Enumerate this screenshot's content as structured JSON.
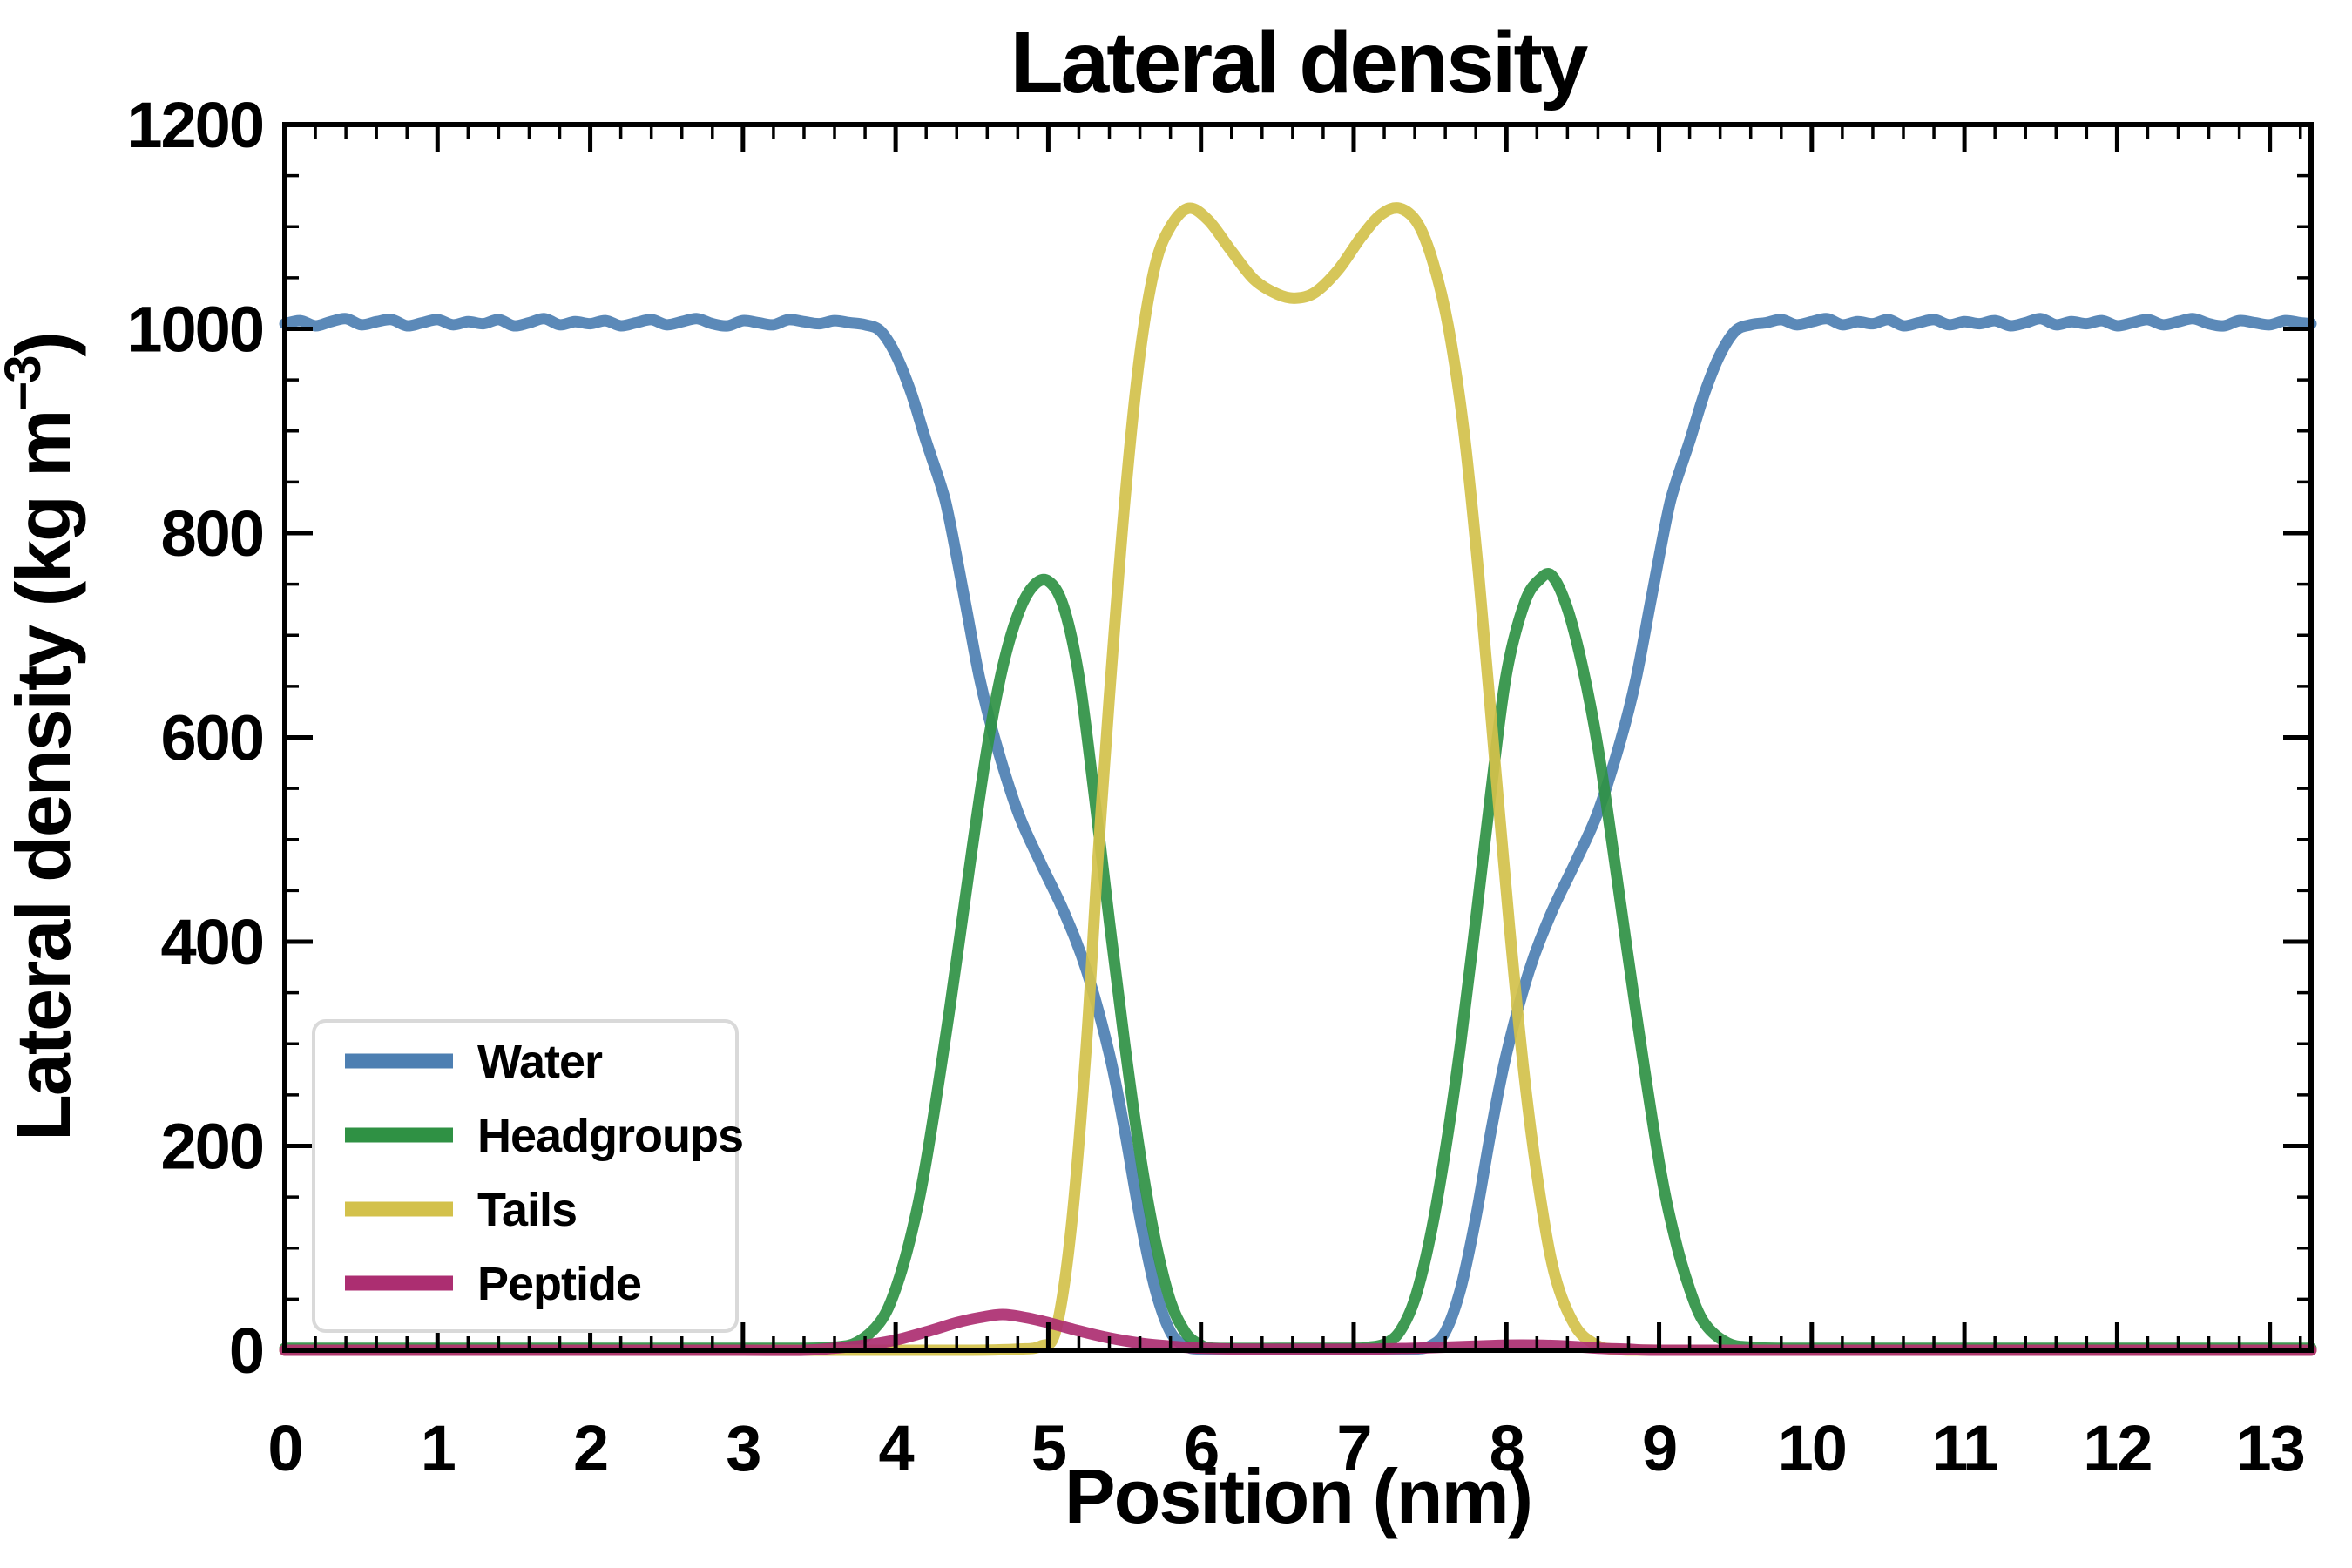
{
  "title": "Lateral density",
  "chart_data": {
    "type": "line",
    "title": "Lateral density",
    "xlabel": "Position (nm)",
    "ylabel": "Lateral density (kg m⁻³)",
    "ylabel_parts": {
      "prefix": "Lateral density (kg m",
      "sup": "−3",
      "suffix": ")"
    },
    "xlim": [
      0,
      13.27
    ],
    "ylim": [
      0,
      1200
    ],
    "x_major_tick": 1,
    "x_minor_tick": 0.2,
    "y_major_tick": 200,
    "y_minor_tick": 50,
    "grid": false,
    "legend_position": "lower left",
    "x_tick_labels": [
      "0",
      "1",
      "2",
      "3",
      "4",
      "5",
      "6",
      "7",
      "8",
      "9",
      "10",
      "11",
      "12",
      "13"
    ],
    "y_tick_labels": [
      "0",
      "200",
      "400",
      "600",
      "800",
      "1000",
      "1200"
    ],
    "series": [
      {
        "name": "Water",
        "color": "#4d7fb2",
        "points": [
          [
            0.0,
            1005
          ],
          [
            0.1,
            1008
          ],
          [
            0.2,
            1003
          ],
          [
            0.3,
            1007
          ],
          [
            0.4,
            1010
          ],
          [
            0.5,
            1004
          ],
          [
            0.6,
            1007
          ],
          [
            0.7,
            1009
          ],
          [
            0.8,
            1003
          ],
          [
            0.9,
            1006
          ],
          [
            1.0,
            1009
          ],
          [
            1.1,
            1004
          ],
          [
            1.2,
            1007
          ],
          [
            1.3,
            1005
          ],
          [
            1.4,
            1009
          ],
          [
            1.5,
            1003
          ],
          [
            1.6,
            1006
          ],
          [
            1.7,
            1010
          ],
          [
            1.8,
            1004
          ],
          [
            1.9,
            1007
          ],
          [
            2.0,
            1005
          ],
          [
            2.1,
            1008
          ],
          [
            2.2,
            1003
          ],
          [
            2.3,
            1006
          ],
          [
            2.4,
            1009
          ],
          [
            2.5,
            1004
          ],
          [
            2.6,
            1007
          ],
          [
            2.7,
            1010
          ],
          [
            2.8,
            1005
          ],
          [
            2.9,
            1003
          ],
          [
            3.0,
            1008
          ],
          [
            3.1,
            1006
          ],
          [
            3.2,
            1004
          ],
          [
            3.3,
            1009
          ],
          [
            3.4,
            1007
          ],
          [
            3.5,
            1005
          ],
          [
            3.6,
            1008
          ],
          [
            3.7,
            1006
          ],
          [
            3.8,
            1004
          ],
          [
            3.9,
            998
          ],
          [
            4.0,
            975
          ],
          [
            4.1,
            938
          ],
          [
            4.2,
            890
          ],
          [
            4.3,
            845
          ],
          [
            4.35,
            815
          ],
          [
            4.45,
            737
          ],
          [
            4.55,
            658
          ],
          [
            4.65,
            598
          ],
          [
            4.8,
            527
          ],
          [
            4.95,
            477
          ],
          [
            5.1,
            430
          ],
          [
            5.25,
            372
          ],
          [
            5.4,
            290
          ],
          [
            5.5,
            215
          ],
          [
            5.6,
            130
          ],
          [
            5.7,
            60
          ],
          [
            5.8,
            18
          ],
          [
            5.9,
            4
          ],
          [
            6.0,
            1
          ],
          [
            6.25,
            1
          ],
          [
            6.5,
            1
          ],
          [
            6.75,
            1
          ],
          [
            7.0,
            1
          ],
          [
            7.25,
            1
          ],
          [
            7.4,
            1
          ],
          [
            7.5,
            4
          ],
          [
            7.6,
            18
          ],
          [
            7.7,
            60
          ],
          [
            7.8,
            130
          ],
          [
            7.9,
            215
          ],
          [
            8.0,
            290
          ],
          [
            8.15,
            372
          ],
          [
            8.3,
            430
          ],
          [
            8.45,
            477
          ],
          [
            8.6,
            527
          ],
          [
            8.75,
            598
          ],
          [
            8.85,
            658
          ],
          [
            8.95,
            737
          ],
          [
            9.05,
            815
          ],
          [
            9.1,
            845
          ],
          [
            9.2,
            890
          ],
          [
            9.3,
            938
          ],
          [
            9.4,
            975
          ],
          [
            9.5,
            998
          ],
          [
            9.6,
            1004
          ],
          [
            9.7,
            1006
          ],
          [
            9.8,
            1009
          ],
          [
            9.9,
            1004
          ],
          [
            10.0,
            1007
          ],
          [
            10.1,
            1010
          ],
          [
            10.2,
            1004
          ],
          [
            10.3,
            1007
          ],
          [
            10.4,
            1005
          ],
          [
            10.5,
            1009
          ],
          [
            10.6,
            1003
          ],
          [
            10.7,
            1006
          ],
          [
            10.8,
            1009
          ],
          [
            10.9,
            1004
          ],
          [
            11.0,
            1007
          ],
          [
            11.1,
            1005
          ],
          [
            11.2,
            1008
          ],
          [
            11.3,
            1003
          ],
          [
            11.4,
            1006
          ],
          [
            11.5,
            1010
          ],
          [
            11.6,
            1004
          ],
          [
            11.7,
            1007
          ],
          [
            11.8,
            1005
          ],
          [
            11.9,
            1008
          ],
          [
            12.0,
            1003
          ],
          [
            12.1,
            1006
          ],
          [
            12.2,
            1009
          ],
          [
            12.3,
            1004
          ],
          [
            12.4,
            1007
          ],
          [
            12.5,
            1010
          ],
          [
            12.6,
            1005
          ],
          [
            12.7,
            1003
          ],
          [
            12.8,
            1008
          ],
          [
            12.9,
            1006
          ],
          [
            13.0,
            1004
          ],
          [
            13.1,
            1008
          ],
          [
            13.2,
            1006
          ],
          [
            13.27,
            1005
          ]
        ]
      },
      {
        "name": "Headgroups",
        "color": "#2f9144",
        "points": [
          [
            0.0,
            2
          ],
          [
            0.5,
            2
          ],
          [
            1.0,
            2
          ],
          [
            1.5,
            2
          ],
          [
            2.0,
            2
          ],
          [
            2.5,
            2
          ],
          [
            3.0,
            2
          ],
          [
            3.4,
            2
          ],
          [
            3.6,
            3
          ],
          [
            3.75,
            8
          ],
          [
            3.9,
            28
          ],
          [
            4.0,
            60
          ],
          [
            4.1,
            112
          ],
          [
            4.2,
            185
          ],
          [
            4.35,
            330
          ],
          [
            4.5,
            490
          ],
          [
            4.6,
            590
          ],
          [
            4.7,
            668
          ],
          [
            4.8,
            720
          ],
          [
            4.9,
            748
          ],
          [
            5.0,
            753
          ],
          [
            5.1,
            728
          ],
          [
            5.2,
            660
          ],
          [
            5.3,
            545
          ],
          [
            5.4,
            420
          ],
          [
            5.5,
            300
          ],
          [
            5.6,
            193
          ],
          [
            5.7,
            108
          ],
          [
            5.8,
            48
          ],
          [
            5.9,
            17
          ],
          [
            6.0,
            5
          ],
          [
            6.1,
            2
          ],
          [
            6.5,
            2
          ],
          [
            7.0,
            2
          ],
          [
            7.1,
            3
          ],
          [
            7.2,
            6
          ],
          [
            7.3,
            18
          ],
          [
            7.4,
            50
          ],
          [
            7.5,
            110
          ],
          [
            7.6,
            195
          ],
          [
            7.7,
            300
          ],
          [
            7.8,
            422
          ],
          [
            7.9,
            548
          ],
          [
            8.0,
            662
          ],
          [
            8.12,
            732
          ],
          [
            8.22,
            755
          ],
          [
            8.3,
            758
          ],
          [
            8.4,
            726
          ],
          [
            8.5,
            668
          ],
          [
            8.6,
            590
          ],
          [
            8.7,
            488
          ],
          [
            8.85,
            330
          ],
          [
            9.0,
            185
          ],
          [
            9.1,
            112
          ],
          [
            9.2,
            60
          ],
          [
            9.3,
            26
          ],
          [
            9.45,
            7
          ],
          [
            9.6,
            3
          ],
          [
            9.8,
            2
          ],
          [
            10.5,
            2
          ],
          [
            11.5,
            2
          ],
          [
            12.5,
            2
          ],
          [
            13.27,
            2
          ]
        ]
      },
      {
        "name": "Tails",
        "color": "#d3c14b",
        "points": [
          [
            0.0,
            0
          ],
          [
            1.0,
            0
          ],
          [
            2.0,
            0
          ],
          [
            3.0,
            0
          ],
          [
            4.0,
            0
          ],
          [
            4.5,
            0
          ],
          [
            4.8,
            1
          ],
          [
            4.95,
            4
          ],
          [
            5.05,
            20
          ],
          [
            5.15,
            120
          ],
          [
            5.25,
            300
          ],
          [
            5.32,
            470
          ],
          [
            5.4,
            640
          ],
          [
            5.5,
            830
          ],
          [
            5.6,
            975
          ],
          [
            5.7,
            1062
          ],
          [
            5.8,
            1100
          ],
          [
            5.92,
            1118
          ],
          [
            6.05,
            1106
          ],
          [
            6.2,
            1076
          ],
          [
            6.35,
            1048
          ],
          [
            6.5,
            1034
          ],
          [
            6.62,
            1030
          ],
          [
            6.75,
            1036
          ],
          [
            6.9,
            1058
          ],
          [
            7.05,
            1090
          ],
          [
            7.18,
            1112
          ],
          [
            7.3,
            1118
          ],
          [
            7.42,
            1103
          ],
          [
            7.52,
            1065
          ],
          [
            7.62,
            1002
          ],
          [
            7.72,
            902
          ],
          [
            7.82,
            757
          ],
          [
            7.92,
            585
          ],
          [
            8.02,
            415
          ],
          [
            8.12,
            265
          ],
          [
            8.22,
            152
          ],
          [
            8.32,
            72
          ],
          [
            8.45,
            24
          ],
          [
            8.58,
            6
          ],
          [
            8.7,
            1
          ],
          [
            9.0,
            0
          ],
          [
            10.0,
            0
          ],
          [
            11.0,
            0
          ],
          [
            12.0,
            0
          ],
          [
            13.27,
            0
          ]
        ]
      },
      {
        "name": "Peptide",
        "color": "#ac2e71",
        "points": [
          [
            0.0,
            0
          ],
          [
            1.0,
            0
          ],
          [
            2.0,
            0
          ],
          [
            3.0,
            0
          ],
          [
            3.4,
            0
          ],
          [
            3.6,
            2
          ],
          [
            3.8,
            5
          ],
          [
            4.0,
            10
          ],
          [
            4.2,
            18
          ],
          [
            4.4,
            27
          ],
          [
            4.55,
            32
          ],
          [
            4.7,
            35
          ],
          [
            4.85,
            32
          ],
          [
            5.0,
            27
          ],
          [
            5.2,
            19
          ],
          [
            5.4,
            12
          ],
          [
            5.6,
            7
          ],
          [
            5.8,
            4
          ],
          [
            6.0,
            2
          ],
          [
            6.3,
            1
          ],
          [
            6.7,
            1
          ],
          [
            7.1,
            1
          ],
          [
            7.4,
            2
          ],
          [
            7.6,
            3
          ],
          [
            7.8,
            4
          ],
          [
            8.0,
            5
          ],
          [
            8.2,
            5
          ],
          [
            8.4,
            4
          ],
          [
            8.6,
            2
          ],
          [
            8.8,
            1
          ],
          [
            9.0,
            0
          ],
          [
            10.0,
            0
          ],
          [
            11.5,
            0
          ],
          [
            13.27,
            0
          ]
        ]
      }
    ]
  },
  "legend": {
    "entries": [
      {
        "label": "Water",
        "color": "#4d7fb2"
      },
      {
        "label": "Headgroups",
        "color": "#2f9144"
      },
      {
        "label": "Tails",
        "color": "#d3c14b"
      },
      {
        "label": "Peptide",
        "color": "#ac2e71"
      }
    ]
  },
  "colors": {
    "axis": "#000000",
    "background": "#ffffff",
    "legend_border": "#d9d9d9"
  }
}
